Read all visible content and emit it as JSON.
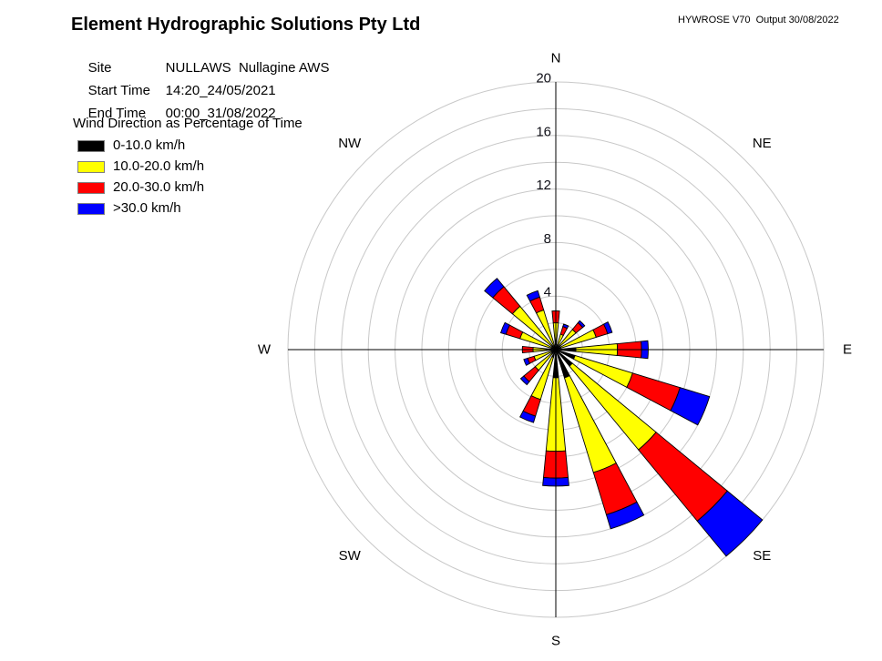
{
  "header": {
    "title": "Element Hydrographic Solutions Pty Ltd",
    "watermark": "HYWROSE V70  Output 30/08/2022",
    "info_rows": [
      {
        "label": "Site",
        "value": "NULLAWS  Nullagine AWS"
      },
      {
        "label": "Start Time",
        "value": "14:20_24/05/2021"
      },
      {
        "label": "End Time",
        "value": "00:00_31/08/2022"
      }
    ],
    "subtitle": "Wind Direction as Percentage of Time"
  },
  "legend": {
    "items": [
      {
        "label": "0-10.0 km/h",
        "color": "#000000"
      },
      {
        "label": "10.0-20.0 km/h",
        "color": "#ffff00"
      },
      {
        "label": "20.0-30.0 km/h",
        "color": "#ff0000"
      },
      {
        "label": ">30.0 km/h",
        "color": "#0000ff"
      }
    ]
  },
  "chart_data": {
    "type": "wind-rose",
    "title": "Wind Direction as Percentage of Time",
    "units": "% of time",
    "directions": [
      "N",
      "NNE",
      "NE",
      "ENE",
      "E",
      "ESE",
      "SE",
      "SSE",
      "S",
      "SSW",
      "SW",
      "WSW",
      "W",
      "WNW",
      "NW",
      "NNW"
    ],
    "series": [
      {
        "name": "0-10.0 km/h",
        "color": "#000000",
        "values": [
          0.6,
          0.4,
          0.4,
          0.4,
          1.5,
          1.5,
          1.6,
          2.2,
          2.1,
          0.6,
          0.4,
          0.3,
          0.5,
          0.3,
          0.4,
          0.3
        ]
      },
      {
        "name": "10.0-20.0 km/h",
        "color": "#ffff00",
        "values": [
          1.4,
          0.8,
          1.55,
          2.75,
          3.1,
          4.5,
          8.1,
          7.4,
          5.5,
          3.3,
          1.6,
          1.4,
          1.2,
          2.5,
          3.8,
          2.8
        ]
      },
      {
        "name": "20.0-30.0 km/h",
        "color": "#ff0000",
        "values": [
          0.9,
          0.6,
          0.65,
          0.9,
          1.8,
          3.7,
          6.9,
          3.3,
          2.0,
          1.3,
          1.1,
          0.5,
          0.8,
          1.1,
          1.9,
          1.0
        ]
      },
      {
        "name": ">30.0 km/h",
        "color": "#0000ff",
        "values": [
          0.0,
          0.2,
          0.2,
          0.35,
          0.5,
          2.3,
          3.4,
          1.1,
          0.6,
          0.5,
          0.3,
          0.3,
          0.0,
          0.4,
          0.8,
          0.5
        ]
      }
    ],
    "radial_axis": {
      "ticks": [
        4,
        8,
        12,
        16,
        20
      ],
      "ring_step": 2,
      "max": 20
    },
    "compass_labels": [
      "N",
      "NE",
      "E",
      "SE",
      "S",
      "SW",
      "W",
      "NW"
    ],
    "ring_color": "#c8c8c8",
    "axis_color": "#000000"
  }
}
